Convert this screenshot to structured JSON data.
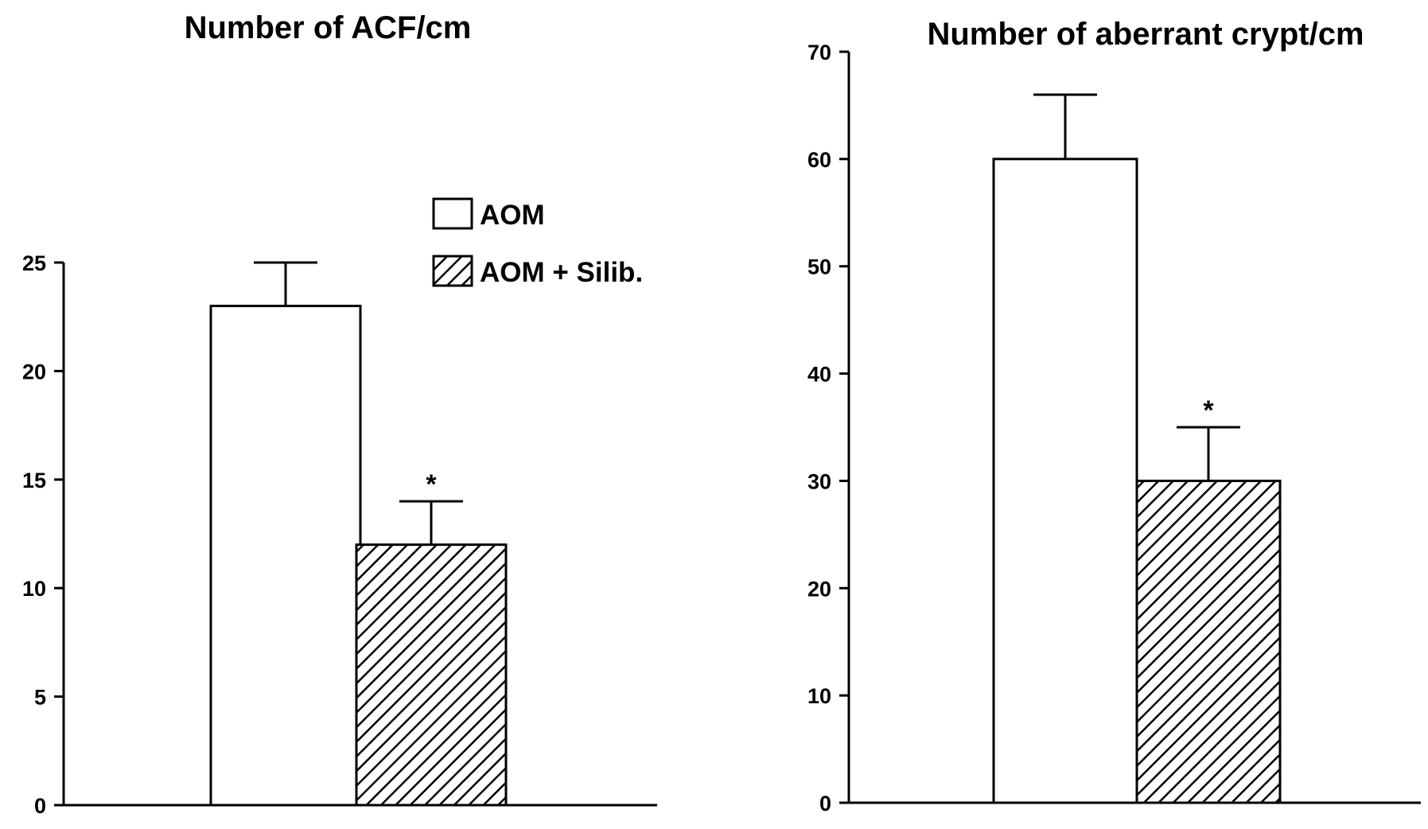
{
  "chart_data": [
    {
      "type": "bar",
      "title": "Number of ACF/cm",
      "xlabel": "",
      "ylabel": "",
      "ylim": [
        0,
        25
      ],
      "yticks": [
        0,
        5,
        10,
        15,
        20,
        25
      ],
      "grid": false,
      "legend_position": "top-right",
      "series": [
        {
          "name": "AOM",
          "pattern": "none",
          "fill": "#ffffff",
          "value": 23,
          "error": 2,
          "significance": ""
        },
        {
          "name": "AOM + Silib.",
          "pattern": "hatch",
          "fill": "#ffffff",
          "value": 12,
          "error": 2,
          "significance": "*"
        }
      ]
    },
    {
      "type": "bar",
      "title": "Number of aberrant crypt/cm",
      "xlabel": "",
      "ylabel": "",
      "ylim": [
        0,
        70
      ],
      "yticks": [
        0,
        10,
        20,
        30,
        40,
        50,
        60,
        70
      ],
      "grid": false,
      "series": [
        {
          "name": "AOM",
          "pattern": "none",
          "fill": "#ffffff",
          "value": 60,
          "error": 6,
          "significance": ""
        },
        {
          "name": "AOM + Silib.",
          "pattern": "hatch",
          "fill": "#ffffff",
          "value": 30,
          "error": 5,
          "significance": "*"
        }
      ]
    }
  ]
}
